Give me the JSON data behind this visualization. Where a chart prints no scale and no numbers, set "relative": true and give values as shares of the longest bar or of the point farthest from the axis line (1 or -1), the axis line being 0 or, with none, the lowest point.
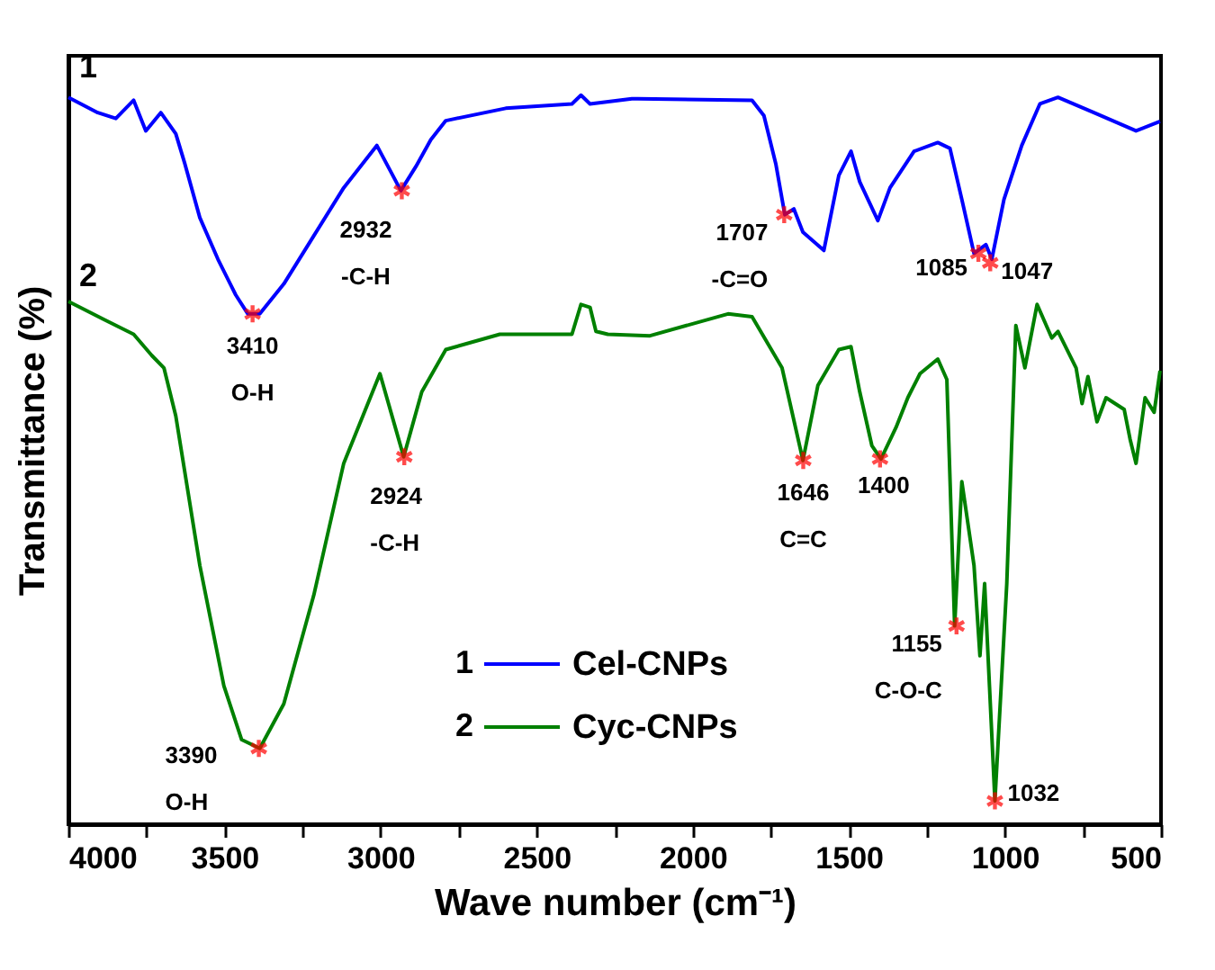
{
  "chart_data": {
    "type": "line",
    "relative": true,
    "xlabel": "Wave number (cm⁻¹)",
    "ylabel": "Transmittance (%)",
    "xlim": [
      4000,
      500
    ],
    "xticks": [
      4000,
      {
        "value": 3750,
        "label": null
      },
      3500,
      {
        "value": 3250,
        "label": null
      },
      3000,
      {
        "value": 2750,
        "label": null
      },
      2500,
      {
        "value": 2250,
        "label": null
      },
      2000,
      {
        "value": 1750,
        "label": null
      },
      1500,
      {
        "value": 1250,
        "label": null
      },
      1000,
      {
        "value": 750,
        "label": null
      },
      500
    ],
    "grid": false,
    "legend": "bottom",
    "line_style": "solid",
    "marker": "none",
    "series": [
      {
        "name": "Cel-CNPs",
        "color": "#0000ff",
        "x": [
          4000,
          3906,
          3848,
          3791,
          3752,
          3704,
          3656,
          3627,
          3579,
          3521,
          3464,
          3425,
          3387,
          3310,
          3214,
          3118,
          3012,
          2935,
          2887,
          2839,
          2791,
          2599,
          2387,
          2358,
          2329,
          2195,
          2176,
          1810,
          1772,
          1734,
          1705,
          1676,
          1647,
          1580,
          1532,
          1493,
          1465,
          1407,
          1368,
          1291,
          1215,
          1176,
          1138,
          1099,
          1061,
          1042,
          1003,
          946,
          888,
          830,
          715,
          580,
          503
        ],
        "values": [
          0.997,
          0.976,
          0.968,
          0.993,
          0.951,
          0.976,
          0.947,
          0.906,
          0.832,
          0.775,
          0.726,
          0.7,
          0.7,
          0.741,
          0.807,
          0.873,
          0.931,
          0.869,
          0.902,
          0.939,
          0.965,
          0.982,
          0.988,
          1,
          0.988,
          0.995,
          0.995,
          0.993,
          0.972,
          0.906,
          0.836,
          0.844,
          0.812,
          0.787,
          0.89,
          0.923,
          0.881,
          0.828,
          0.873,
          0.923,
          0.935,
          0.927,
          0.857,
          0.783,
          0.795,
          0.775,
          0.857,
          0.931,
          0.988,
          0.997,
          0.976,
          0.951,
          0.964
        ]
      },
      {
        "name": "Cyc-CNPs",
        "color": "#008000",
        "x": [
          4000,
          3885,
          3791,
          3733,
          3694,
          3656,
          3579,
          3502,
          3445,
          3387,
          3310,
          3214,
          3118,
          3002,
          2926,
          2868,
          2791,
          2618,
          2387,
          2358,
          2329,
          2310,
          2272,
          2137,
          1887,
          1810,
          1714,
          1647,
          1599,
          1532,
          1493,
          1465,
          1426,
          1397,
          1349,
          1311,
          1272,
          1215,
          1186,
          1161,
          1138,
          1099,
          1080,
          1065,
          1032,
          994,
          965,
          936,
          897,
          850,
          830,
          772,
          753,
          734,
          705,
          676,
          618,
          599,
          580,
          551,
          522,
          503
        ],
        "values": [
          0.717,
          0.692,
          0.672,
          0.643,
          0.626,
          0.56,
          0.355,
          0.19,
          0.116,
          0.104,
          0.165,
          0.314,
          0.495,
          0.618,
          0.504,
          0.593,
          0.651,
          0.672,
          0.672,
          0.713,
          0.709,
          0.676,
          0.672,
          0.67,
          0.7,
          0.696,
          0.626,
          0.499,
          0.602,
          0.651,
          0.655,
          0.593,
          0.519,
          0.501,
          0.544,
          0.585,
          0.618,
          0.638,
          0.61,
          0.272,
          0.47,
          0.355,
          0.231,
          0.33,
          0.032,
          0.33,
          0.684,
          0.626,
          0.713,
          0.667,
          0.676,
          0.626,
          0.577,
          0.614,
          0.552,
          0.585,
          0.569,
          0.528,
          0.495,
          0.585,
          0.565,
          0.622
        ]
      }
    ],
    "annotations": [
      "1",
      "2",
      {
        "text": "3410\nO-H",
        "x": 3410,
        "y": 0.7
      },
      {
        "text": "2932\n-C-H",
        "x": 2932,
        "y": 0.869
      },
      {
        "text": "1707\n-C=O",
        "x": 1707,
        "y": 0.836
      },
      {
        "text": "1085",
        "x": 1085,
        "y": 0.783
      },
      {
        "text": "1047",
        "x": 1047,
        "y": 0.77
      },
      {
        "text": "3390\nO-H",
        "x": 3390,
        "y": 0.104
      },
      {
        "text": "2924\n-C-H",
        "x": 2924,
        "y": 0.504
      },
      {
        "text": "1646\nC=C",
        "x": 1646,
        "y": 0.499
      },
      {
        "text": "1400",
        "x": 1400,
        "y": 0.501
      },
      {
        "text": "1155\nC-O-C",
        "x": 1155,
        "y": 0.272
      },
      {
        "text": "1032",
        "x": 1032,
        "y": 0.032
      }
    ]
  }
}
